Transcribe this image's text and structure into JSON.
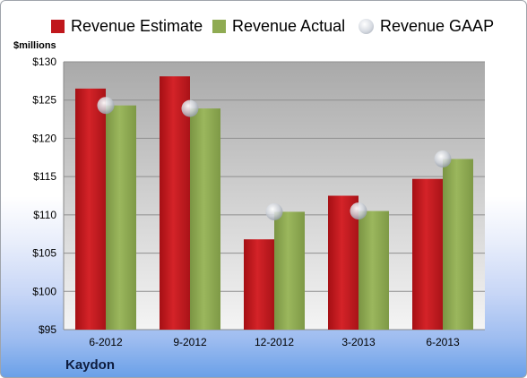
{
  "unit_label": "$millions",
  "company": "Kaydon",
  "colors": {
    "estimate": "#c0171c",
    "actual": "#8fab52",
    "gaap": "#c9ced6"
  },
  "chart_data": {
    "type": "bar",
    "categories": [
      "6-2012",
      "9-2012",
      "12-2012",
      "3-2013",
      "6-2013"
    ],
    "series": [
      {
        "name": "Revenue Estimate",
        "values": [
          126.5,
          128.1,
          106.8,
          112.5,
          114.7
        ]
      },
      {
        "name": "Revenue Actual",
        "values": [
          124.3,
          123.9,
          110.4,
          110.5,
          117.3
        ]
      },
      {
        "name": "Revenue GAAP",
        "values": [
          124.3,
          123.9,
          110.4,
          110.5,
          117.3
        ],
        "marker": "dot"
      }
    ],
    "ylim": [
      95,
      130
    ],
    "yticks": [
      95,
      100,
      105,
      110,
      115,
      120,
      125,
      130
    ],
    "ytick_labels": [
      "$95",
      "$100",
      "$105",
      "$110",
      "$115",
      "$120",
      "$125",
      "$130"
    ],
    "grid": true,
    "legend_position": "top"
  }
}
